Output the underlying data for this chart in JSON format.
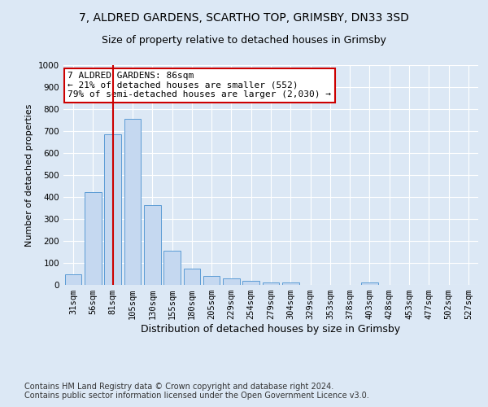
{
  "title1": "7, ALDRED GARDENS, SCARTHO TOP, GRIMSBY, DN33 3SD",
  "title2": "Size of property relative to detached houses in Grimsby",
  "xlabel": "Distribution of detached houses by size in Grimsby",
  "ylabel": "Number of detached properties",
  "footer1": "Contains HM Land Registry data © Crown copyright and database right 2024.",
  "footer2": "Contains public sector information licensed under the Open Government Licence v3.0.",
  "categories": [
    "31sqm",
    "56sqm",
    "81sqm",
    "105sqm",
    "130sqm",
    "155sqm",
    "180sqm",
    "205sqm",
    "229sqm",
    "254sqm",
    "279sqm",
    "304sqm",
    "329sqm",
    "353sqm",
    "378sqm",
    "403sqm",
    "428sqm",
    "453sqm",
    "477sqm",
    "502sqm",
    "527sqm"
  ],
  "values": [
    50,
    422,
    686,
    757,
    362,
    154,
    75,
    42,
    30,
    18,
    12,
    10,
    0,
    0,
    0,
    10,
    0,
    0,
    0,
    0,
    0
  ],
  "bar_color": "#c5d8f0",
  "bar_edge_color": "#5b9bd5",
  "vline_color": "#cc0000",
  "vline_x_index": 2.0,
  "annotation_text": "7 ALDRED GARDENS: 86sqm\n← 21% of detached houses are smaller (552)\n79% of semi-detached houses are larger (2,030) →",
  "annotation_box_color": "#ffffff",
  "annotation_box_edge": "#cc0000",
  "ylim": [
    0,
    1000
  ],
  "yticks": [
    0,
    100,
    200,
    300,
    400,
    500,
    600,
    700,
    800,
    900,
    1000
  ],
  "background_color": "#dce8f5",
  "plot_background": "#dce8f5",
  "grid_color": "#ffffff",
  "title1_fontsize": 10,
  "title2_fontsize": 9,
  "xlabel_fontsize": 9,
  "ylabel_fontsize": 8,
  "tick_fontsize": 7.5,
  "footer_fontsize": 7,
  "annotation_fontsize": 8
}
